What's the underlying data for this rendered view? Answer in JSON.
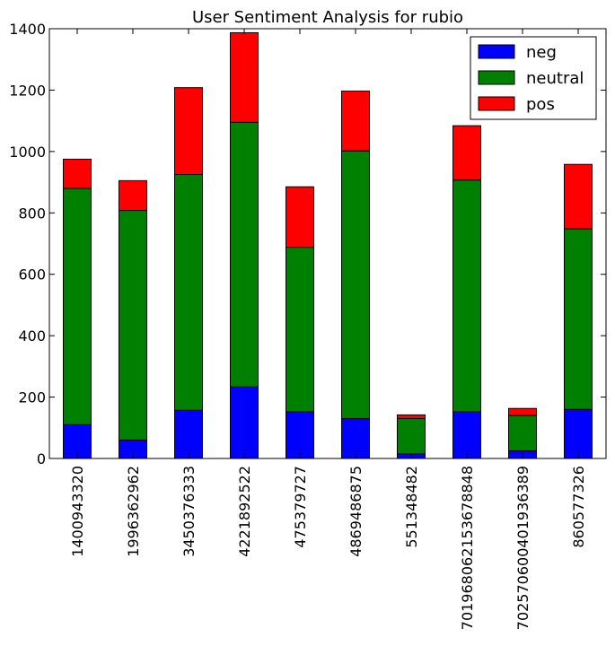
{
  "chart_data": {
    "type": "bar",
    "stacked": true,
    "title": "User Sentiment Analysis for rubio",
    "xlabel": "",
    "ylabel": "",
    "ylim": [
      0,
      1400
    ],
    "yticks": [
      0,
      200,
      400,
      600,
      800,
      1000,
      1200,
      1400
    ],
    "grid": false,
    "legend_position": "top-right",
    "categories": [
      "1400943320",
      "1996362962",
      "3450376333",
      "4221892522",
      "475379727",
      "4869486875",
      "551348482",
      "701968062153678848",
      "702570600401936389",
      "860577326"
    ],
    "series": [
      {
        "name": "neg",
        "color": "#0000ff",
        "values": [
          110,
          60,
          157,
          233,
          152,
          130,
          15,
          152,
          25,
          160
        ]
      },
      {
        "name": "neutral",
        "color": "#008000",
        "values": [
          770,
          748,
          768,
          862,
          536,
          872,
          115,
          755,
          115,
          588
        ]
      },
      {
        "name": "pos",
        "color": "#ff0000",
        "values": [
          95,
          97,
          283,
          292,
          197,
          195,
          12,
          177,
          23,
          210
        ]
      }
    ]
  }
}
